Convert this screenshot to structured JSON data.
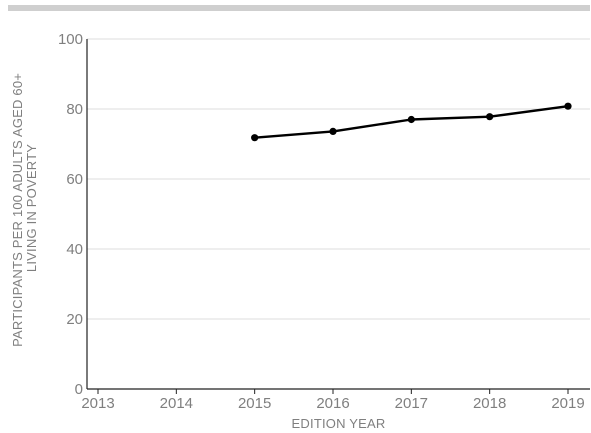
{
  "chart_data": {
    "type": "line",
    "x": [
      "2013",
      "2014",
      "2015",
      "2016",
      "2017",
      "2018",
      "2019"
    ],
    "series": [
      {
        "values": [
          null,
          null,
          71.8,
          73.6,
          77.0,
          77.8,
          80.8
        ]
      }
    ],
    "xlabel": "EDITION YEAR",
    "ylabel_lines": [
      "PARTICIPANTS PER 100 ADULTS AGED 60+",
      "LIVING IN POVERTY"
    ],
    "yticks": [
      0,
      20,
      40,
      60,
      80,
      100
    ],
    "ylim": [
      0,
      100
    ],
    "grid": true,
    "colors": {
      "line": "#000000",
      "grid": "#dcdcdc",
      "axis": "#222222",
      "text": "#7f7f7f",
      "top_bar": "#cfcfcf"
    }
  }
}
